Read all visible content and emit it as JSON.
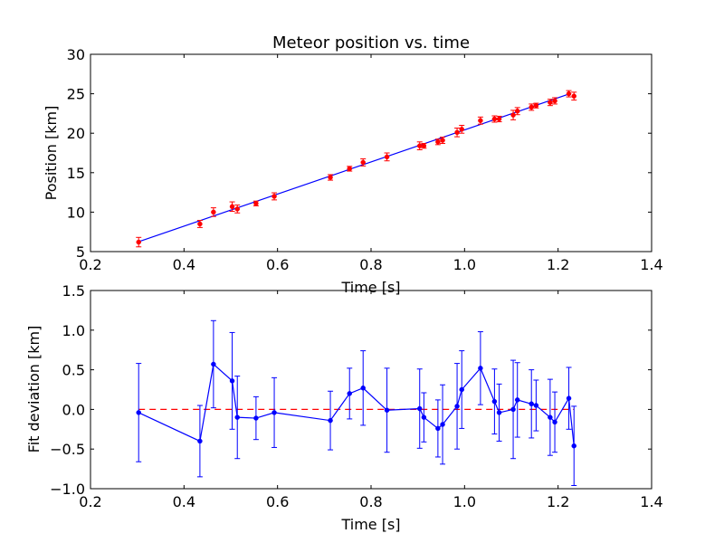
{
  "chart_data": [
    {
      "type": "scatter",
      "title": "Meteor position vs. time",
      "xlabel": "Time [s]",
      "ylabel": "Position [km]",
      "xlim": [
        0.2,
        1.4
      ],
      "ylim": [
        5,
        30
      ],
      "xticks": [
        "0.2",
        "0.4",
        "0.6",
        "0.8",
        "1.0",
        "1.2",
        "1.4"
      ],
      "yticks": [
        "5",
        "10",
        "15",
        "20",
        "25",
        "30"
      ],
      "colors": {
        "points": "#ff0000",
        "errorbars": "#ff0000",
        "fit": "#0000ff"
      },
      "fit_line": {
        "x": [
          0.303,
          1.225
        ],
        "y": [
          6.25,
          25.0
        ]
      },
      "series": [
        {
          "x": [
            0.303,
            0.434,
            0.463,
            0.503,
            0.514,
            0.554,
            0.593,
            0.713,
            0.754,
            0.783,
            0.834,
            0.904,
            0.913,
            0.943,
            0.953,
            0.984,
            0.994,
            1.034,
            1.064,
            1.074,
            1.104,
            1.113,
            1.143,
            1.153,
            1.183,
            1.193,
            1.223,
            1.234
          ],
          "y": [
            6.2,
            8.5,
            10.0,
            10.7,
            10.4,
            11.1,
            12.0,
            14.4,
            15.5,
            16.3,
            17.0,
            18.4,
            18.4,
            18.9,
            19.1,
            20.1,
            20.5,
            21.6,
            21.8,
            21.8,
            22.3,
            22.8,
            23.3,
            23.5,
            23.9,
            24.1,
            25.0,
            24.7
          ],
          "yerr": [
            0.6,
            0.45,
            0.55,
            0.6,
            0.5,
            0.3,
            0.45,
            0.35,
            0.3,
            0.45,
            0.5,
            0.5,
            0.3,
            0.35,
            0.4,
            0.55,
            0.5,
            0.45,
            0.4,
            0.35,
            0.6,
            0.45,
            0.4,
            0.3,
            0.4,
            0.4,
            0.4,
            0.5
          ]
        }
      ]
    },
    {
      "type": "line",
      "title": "",
      "xlabel": "Time [s]",
      "ylabel": "Fit deviation [km]",
      "xlim": [
        0.2,
        1.4
      ],
      "ylim": [
        -1.0,
        1.5
      ],
      "xticks": [
        "0.2",
        "0.4",
        "0.6",
        "0.8",
        "1.0",
        "1.2",
        "1.4"
      ],
      "yticks": [
        "−1.0",
        "−0.5",
        "0.0",
        "0.5",
        "1.0",
        "1.5"
      ],
      "colors": {
        "series": "#0000ff",
        "zero_line": "#ff0000"
      },
      "zero_line": 0.0,
      "series": [
        {
          "x": [
            0.303,
            0.434,
            0.463,
            0.503,
            0.514,
            0.554,
            0.593,
            0.713,
            0.754,
            0.783,
            0.834,
            0.904,
            0.913,
            0.943,
            0.953,
            0.984,
            0.994,
            1.034,
            1.064,
            1.074,
            1.104,
            1.113,
            1.143,
            1.153,
            1.183,
            1.193,
            1.223,
            1.234
          ],
          "y": [
            -0.04,
            -0.4,
            0.57,
            0.36,
            -0.1,
            -0.11,
            -0.04,
            -0.14,
            0.2,
            0.27,
            -0.01,
            0.01,
            -0.1,
            -0.24,
            -0.19,
            0.04,
            0.25,
            0.52,
            0.1,
            -0.04,
            0.0,
            0.12,
            0.07,
            0.05,
            -0.1,
            -0.16,
            0.14,
            -0.46
          ],
          "yerr": [
            0.62,
            0.45,
            0.55,
            0.61,
            0.52,
            0.27,
            0.44,
            0.37,
            0.32,
            0.47,
            0.53,
            0.5,
            0.31,
            0.36,
            0.5,
            0.54,
            0.49,
            0.46,
            0.41,
            0.36,
            0.62,
            0.47,
            0.43,
            0.32,
            0.48,
            0.38,
            0.39,
            0.5
          ]
        }
      ]
    }
  ]
}
